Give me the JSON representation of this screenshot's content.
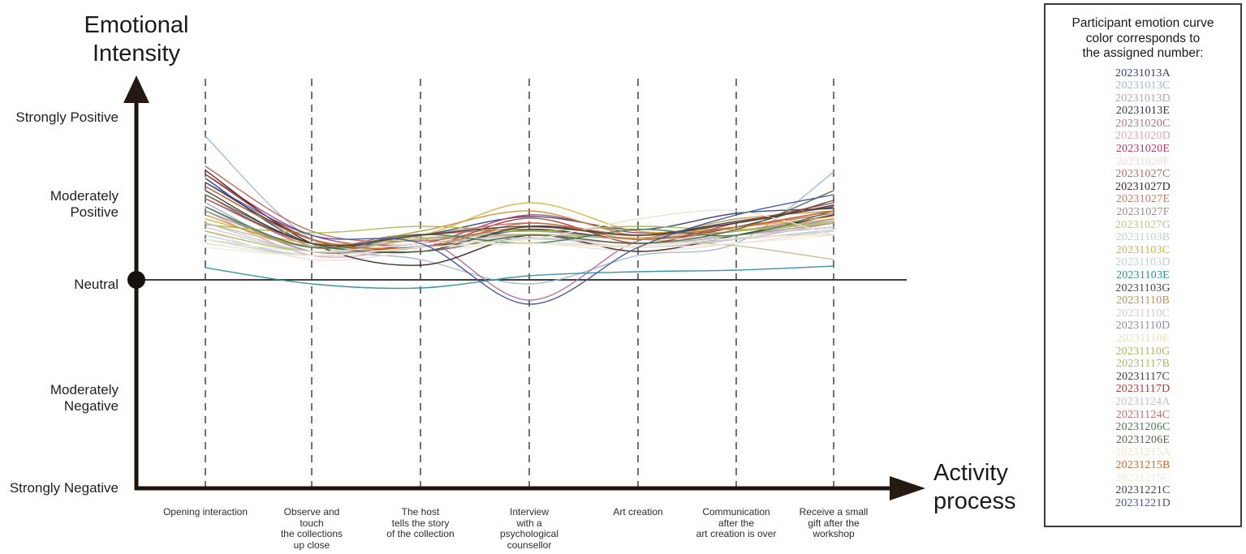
{
  "y_axis": {
    "title": "Emotional\nIntensity",
    "labels": [
      "Strongly Positive",
      "Moderately Positive",
      "Neutral",
      "Moderately Negative",
      "Strongly Negative"
    ]
  },
  "x_axis": {
    "title": "Activity\nprocess"
  },
  "legend": {
    "title": "Participant emotion curve\ncolor corresponds to\nthe assigned number:"
  },
  "chart_data": {
    "type": "line",
    "title": "Participant emotion curves over activity process",
    "xlabel": "Activity process",
    "ylabel": "Emotional Intensity",
    "categories": [
      "Opening interaction",
      "Observe and\ntouch\nthe collections\nup close",
      "The host\ntells the story\nof the collection",
      "Interview\nwith a\npsychological\ncounsellor",
      "Art creation",
      "Communication\nafter the\nart creation is over",
      "Receive a small\ngift after the\nworkshop"
    ],
    "y_tick_labels": [
      "Strongly Positive",
      "Moderately Positive",
      "Neutral",
      "Moderately Negative",
      "Strongly Negative"
    ],
    "y_value_scale": {
      "strongly_positive": 2,
      "moderately_positive": 1,
      "neutral": 0,
      "moderately_negative": -1,
      "strongly_negative": -2
    },
    "ylim": [
      -2.5,
      2.5
    ],
    "grid": "dashed vertical line at each activity",
    "legend_position": "boxed panel at right",
    "series": [
      {
        "name": "20231013A",
        "color": "#2e4372",
        "values": [
          1.25,
          0.45,
          0.55,
          0.78,
          0.62,
          0.82,
          0.88
        ]
      },
      {
        "name": "20231013C",
        "color": "#9fb8d0",
        "values": [
          1.77,
          0.5,
          0.25,
          -0.05,
          0.3,
          0.45,
          1.33
        ]
      },
      {
        "name": "20231013D",
        "color": "#a7a9c4",
        "values": [
          0.95,
          0.35,
          0.45,
          0.55,
          0.45,
          0.55,
          0.75
        ]
      },
      {
        "name": "20231013E",
        "color": "#39314e",
        "values": [
          1.2,
          0.5,
          0.4,
          0.62,
          0.5,
          0.65,
          0.85
        ]
      },
      {
        "name": "20231020C",
        "color": "#b76e8c",
        "values": [
          1.05,
          0.42,
          0.52,
          -0.25,
          0.48,
          0.6,
          0.8
        ]
      },
      {
        "name": "20231020D",
        "color": "#d8a8bc",
        "values": [
          0.85,
          0.3,
          0.4,
          0.52,
          0.4,
          0.5,
          0.7
        ]
      },
      {
        "name": "20231020E",
        "color": "#ae3a6e",
        "values": [
          1.3,
          0.55,
          0.45,
          0.8,
          0.58,
          0.7,
          0.92
        ]
      },
      {
        "name": "20231020F",
        "color": "#f0dada",
        "values": [
          0.6,
          0.25,
          0.35,
          0.45,
          0.35,
          0.45,
          0.6
        ]
      },
      {
        "name": "20231027C",
        "color": "#bd6a55",
        "values": [
          1.4,
          0.6,
          0.48,
          0.65,
          0.55,
          0.65,
          0.85
        ]
      },
      {
        "name": "20231027D",
        "color": "#3a241c",
        "values": [
          1.35,
          0.45,
          0.18,
          0.55,
          0.35,
          0.55,
          0.8
        ]
      },
      {
        "name": "20231027E",
        "color": "#bd7d6a",
        "values": [
          1.1,
          0.45,
          0.55,
          0.62,
          0.5,
          0.6,
          0.75
        ]
      },
      {
        "name": "20231027F",
        "color": "#a08a8a",
        "values": [
          0.9,
          0.35,
          0.45,
          0.55,
          0.45,
          0.55,
          0.7
        ]
      },
      {
        "name": "20231027G",
        "color": "#c5c193",
        "values": [
          0.7,
          0.42,
          0.52,
          0.56,
          0.5,
          0.42,
          0.25
        ]
      },
      {
        "name": "20231103B",
        "color": "#b9d2dd",
        "values": [
          0.55,
          0.3,
          0.42,
          0.5,
          0.45,
          0.5,
          0.62
        ]
      },
      {
        "name": "20231103C",
        "color": "#dcaf3c",
        "values": [
          0.75,
          0.45,
          0.55,
          0.95,
          0.6,
          0.65,
          0.78
        ]
      },
      {
        "name": "20231103D",
        "color": "#c3cdd4",
        "values": [
          0.5,
          0.3,
          0.4,
          0.46,
          0.4,
          0.5,
          0.6
        ]
      },
      {
        "name": "20231103E",
        "color": "#2f8fa0",
        "values": [
          0.15,
          -0.05,
          -0.1,
          0.05,
          0.1,
          0.12,
          0.17
        ]
      },
      {
        "name": "20231103G",
        "color": "#45473a",
        "values": [
          1.15,
          0.5,
          0.4,
          0.62,
          0.5,
          0.65,
          0.98
        ]
      },
      {
        "name": "20231110B",
        "color": "#c9913c",
        "values": [
          0.8,
          0.4,
          0.6,
          0.85,
          0.55,
          0.75,
          0.85
        ]
      },
      {
        "name": "20231110C",
        "color": "#cfc8d8",
        "values": [
          0.65,
          0.35,
          0.45,
          0.52,
          0.45,
          0.55,
          0.65
        ]
      },
      {
        "name": "20231110D",
        "color": "#8f9093",
        "values": [
          0.85,
          0.4,
          0.5,
          0.6,
          0.5,
          0.6,
          0.72
        ]
      },
      {
        "name": "20231110E",
        "color": "#e7e2c0",
        "values": [
          0.45,
          0.3,
          0.4,
          0.46,
          0.42,
          0.52,
          0.56
        ]
      },
      {
        "name": "20231110G",
        "color": "#b5b464",
        "values": [
          0.6,
          0.35,
          0.5,
          0.56,
          0.52,
          0.6,
          0.7
        ]
      },
      {
        "name": "20231117B",
        "color": "#aabc50",
        "values": [
          0.68,
          0.58,
          0.66,
          0.6,
          0.66,
          0.62,
          0.72
        ]
      },
      {
        "name": "20231117C",
        "color": "#3f4040",
        "values": [
          1.0,
          0.45,
          0.35,
          0.66,
          0.55,
          0.72,
          0.9
        ]
      },
      {
        "name": "20231117D",
        "color": "#ae3a32",
        "values": [
          1.3,
          0.5,
          0.4,
          0.76,
          0.45,
          0.7,
          0.95
        ]
      },
      {
        "name": "20231124A",
        "color": "#c4c4c4",
        "values": [
          0.7,
          0.35,
          0.45,
          0.55,
          0.5,
          0.55,
          0.65
        ]
      },
      {
        "name": "20231124C",
        "color": "#c76a74",
        "values": [
          1.0,
          0.45,
          0.55,
          0.7,
          0.55,
          0.65,
          0.82
        ]
      },
      {
        "name": "20231206C",
        "color": "#3e7d4a",
        "values": [
          0.9,
          0.4,
          0.56,
          0.45,
          0.62,
          0.55,
          0.85
        ]
      },
      {
        "name": "20231206E",
        "color": "#55663c",
        "values": [
          1.05,
          0.45,
          0.35,
          0.55,
          0.45,
          0.62,
          1.1
        ]
      },
      {
        "name": "20231215A",
        "color": "#e9e6c6",
        "values": [
          0.5,
          0.35,
          0.45,
          0.5,
          0.75,
          0.85,
          0.55
        ]
      },
      {
        "name": "20231215B",
        "color": "#c96a2e",
        "values": [
          1.15,
          0.5,
          0.4,
          0.7,
          0.5,
          0.65,
          0.85
        ]
      },
      {
        "name": "20231215C",
        "color": "#f2ead8",
        "values": [
          0.4,
          0.3,
          0.4,
          0.45,
          0.4,
          0.45,
          0.55
        ]
      },
      {
        "name": "20231221C",
        "color": "#44453a",
        "values": [
          1.1,
          0.45,
          0.55,
          0.66,
          0.55,
          0.7,
          0.92
        ]
      },
      {
        "name": "20231221D",
        "color": "#40549e",
        "values": [
          1.2,
          0.55,
          0.45,
          -0.3,
          0.4,
          0.8,
          1.05
        ]
      }
    ]
  }
}
